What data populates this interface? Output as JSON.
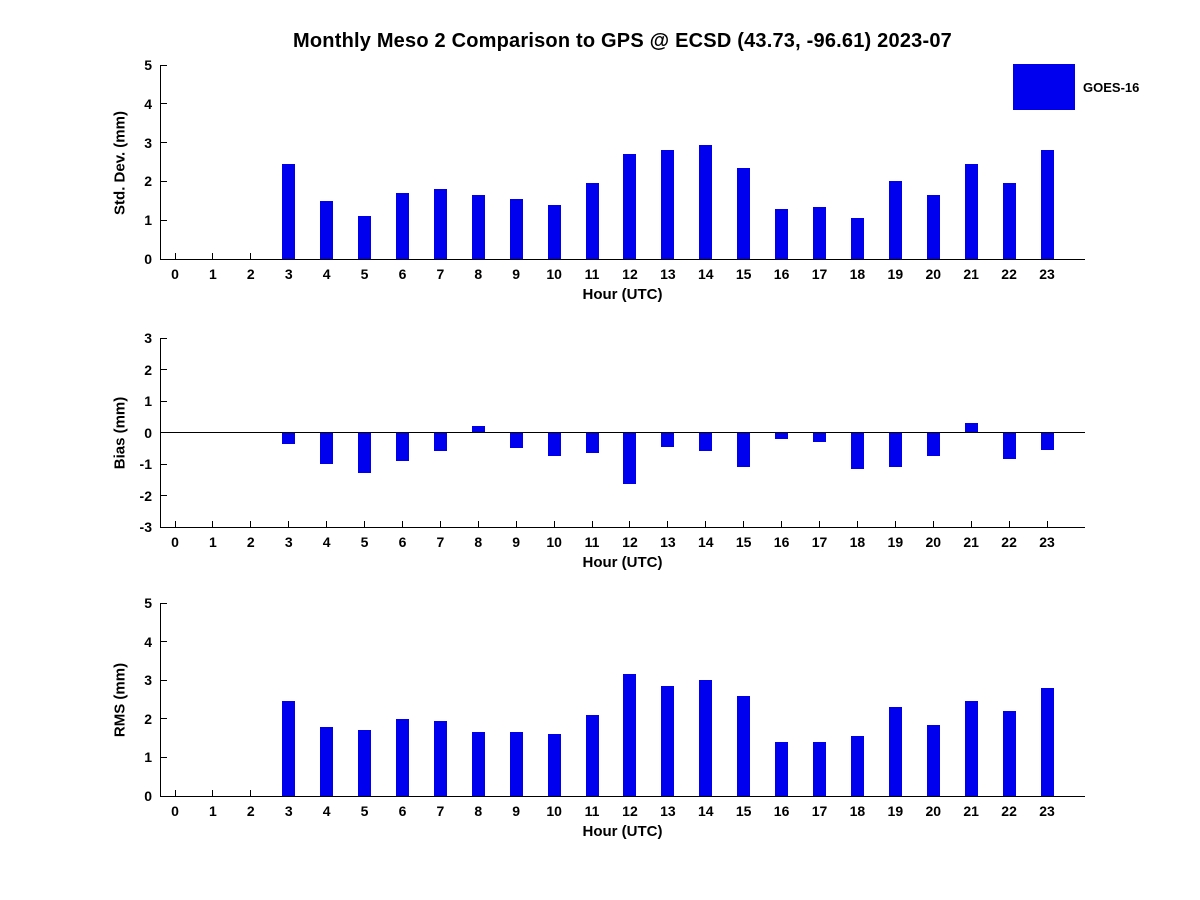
{
  "title": "Monthly Meso 2 Comparison to GPS @ ECSD (43.73, -96.61) 2023-07",
  "legend": {
    "label": "GOES-16",
    "color": "#0000ee"
  },
  "bar_color": "#0000ee",
  "chart_data": [
    {
      "type": "bar",
      "name": "std-dev",
      "ylabel": "Std. Dev. (mm)",
      "xlabel": "Hour (UTC)",
      "ylim": [
        0,
        5
      ],
      "yticks": [
        0,
        1,
        2,
        3,
        4,
        5
      ],
      "grid": false,
      "legend_position": "top-right",
      "series_name": "GOES-16",
      "categories": [
        0,
        1,
        2,
        3,
        4,
        5,
        6,
        7,
        8,
        9,
        10,
        11,
        12,
        13,
        14,
        15,
        16,
        17,
        18,
        19,
        20,
        21,
        22,
        23
      ],
      "values": [
        null,
        null,
        null,
        2.45,
        1.5,
        1.1,
        1.7,
        1.8,
        1.65,
        1.55,
        1.4,
        1.95,
        2.7,
        2.8,
        2.95,
        2.35,
        1.3,
        1.35,
        1.05,
        2.0,
        1.65,
        2.45,
        1.95,
        2.8
      ]
    },
    {
      "type": "bar",
      "name": "bias",
      "ylabel": "Bias (mm)",
      "xlabel": "Hour (UTC)",
      "ylim": [
        -3,
        3
      ],
      "yticks": [
        3,
        2,
        1,
        0,
        -1,
        -2,
        -3
      ],
      "grid": false,
      "series_name": "GOES-16",
      "categories": [
        0,
        1,
        2,
        3,
        4,
        5,
        6,
        7,
        8,
        9,
        10,
        11,
        12,
        13,
        14,
        15,
        16,
        17,
        18,
        19,
        20,
        21,
        22,
        23
      ],
      "values": [
        null,
        null,
        null,
        -0.35,
        -1.0,
        -1.3,
        -0.9,
        -0.6,
        0.2,
        -0.5,
        -0.75,
        -0.65,
        -1.65,
        -0.45,
        -0.6,
        -1.1,
        -0.2,
        -0.3,
        -1.15,
        -1.1,
        -0.75,
        0.3,
        -0.85,
        -0.55
      ]
    },
    {
      "type": "bar",
      "name": "rms",
      "ylabel": "RMS (mm)",
      "xlabel": "Hour (UTC)",
      "ylim": [
        0,
        5
      ],
      "yticks": [
        0,
        1,
        2,
        3,
        4,
        5
      ],
      "grid": false,
      "series_name": "GOES-16",
      "categories": [
        0,
        1,
        2,
        3,
        4,
        5,
        6,
        7,
        8,
        9,
        10,
        11,
        12,
        13,
        14,
        15,
        16,
        17,
        18,
        19,
        20,
        21,
        22,
        23
      ],
      "values": [
        null,
        null,
        null,
        2.45,
        1.8,
        1.7,
        2.0,
        1.95,
        1.65,
        1.65,
        1.6,
        2.1,
        3.15,
        2.85,
        3.0,
        2.6,
        1.4,
        1.4,
        1.55,
        2.3,
        1.85,
        2.45,
        2.2,
        2.8
      ]
    }
  ]
}
